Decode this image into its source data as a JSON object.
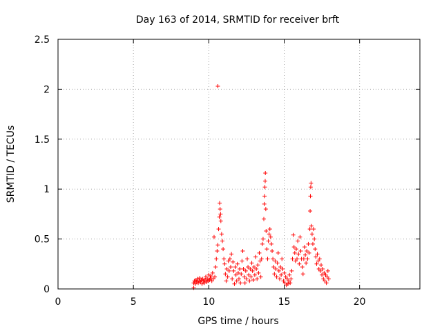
{
  "chart_data": {
    "type": "scatter",
    "title": "Day 163 of 2014, SRMTID for receiver brft",
    "xlabel": "GPS time / hours",
    "ylabel": "SRMTID / TECUs",
    "xlim": [
      0,
      24
    ],
    "ylim": [
      0,
      2.5
    ],
    "xticks": [
      0,
      5,
      10,
      15,
      20
    ],
    "yticks": [
      0,
      0.5,
      1,
      1.5,
      2,
      2.5
    ],
    "grid": true,
    "marker": "+",
    "color": "#ff0000",
    "series": [
      {
        "points": [
          [
            9.0,
            0.01
          ],
          [
            9.0,
            0.06
          ],
          [
            9.05,
            0.08
          ],
          [
            9.1,
            0.05
          ],
          [
            9.15,
            0.09
          ],
          [
            9.2,
            0.07
          ],
          [
            9.25,
            0.1
          ],
          [
            9.3,
            0.06
          ],
          [
            9.35,
            0.08
          ],
          [
            9.4,
            0.11
          ],
          [
            9.45,
            0.07
          ],
          [
            9.5,
            0.09
          ],
          [
            9.55,
            0.05
          ],
          [
            9.6,
            0.1
          ],
          [
            9.65,
            0.08
          ],
          [
            9.7,
            0.06
          ],
          [
            9.75,
            0.09
          ],
          [
            9.8,
            0.12
          ],
          [
            9.85,
            0.07
          ],
          [
            9.9,
            0.1
          ],
          [
            9.95,
            0.08
          ],
          [
            10.0,
            0.14
          ],
          [
            10.05,
            0.09
          ],
          [
            10.1,
            0.11
          ],
          [
            10.15,
            0.13
          ],
          [
            10.2,
            0.08
          ],
          [
            10.25,
            0.16
          ],
          [
            10.3,
            0.1
          ],
          [
            10.35,
            0.52
          ],
          [
            10.4,
            0.12
          ],
          [
            10.45,
            0.22
          ],
          [
            10.5,
            0.3
          ],
          [
            10.55,
            0.38
          ],
          [
            10.6,
            2.03
          ],
          [
            10.6,
            0.44
          ],
          [
            10.65,
            0.6
          ],
          [
            10.7,
            0.72
          ],
          [
            10.72,
            0.86
          ],
          [
            10.75,
            0.8
          ],
          [
            10.78,
            0.75
          ],
          [
            10.8,
            0.68
          ],
          [
            10.85,
            0.55
          ],
          [
            10.9,
            0.48
          ],
          [
            10.95,
            0.4
          ],
          [
            11.0,
            0.3
          ],
          [
            11.05,
            0.25
          ],
          [
            11.1,
            0.15
          ],
          [
            11.15,
            0.08
          ],
          [
            11.2,
            0.2
          ],
          [
            11.25,
            0.12
          ],
          [
            11.3,
            0.28
          ],
          [
            11.35,
            0.18
          ],
          [
            11.4,
            0.3
          ],
          [
            11.45,
            0.22
          ],
          [
            11.5,
            0.35
          ],
          [
            11.55,
            0.1
          ],
          [
            11.6,
            0.27
          ],
          [
            11.65,
            0.18
          ],
          [
            11.7,
            0.05
          ],
          [
            11.75,
            0.22
          ],
          [
            11.8,
            0.14
          ],
          [
            11.85,
            0.08
          ],
          [
            11.9,
            0.25
          ],
          [
            11.95,
            0.16
          ],
          [
            12.0,
            0.1
          ],
          [
            12.05,
            0.2
          ],
          [
            12.1,
            0.06
          ],
          [
            12.15,
            0.15
          ],
          [
            12.2,
            0.28
          ],
          [
            12.25,
            0.38
          ],
          [
            12.3,
            0.2
          ],
          [
            12.35,
            0.12
          ],
          [
            12.4,
            0.06
          ],
          [
            12.45,
            0.18
          ],
          [
            12.5,
            0.1
          ],
          [
            12.55,
            0.3
          ],
          [
            12.6,
            0.22
          ],
          [
            12.65,
            0.14
          ],
          [
            12.7,
            0.08
          ],
          [
            12.75,
            0.2
          ],
          [
            12.8,
            0.12
          ],
          [
            12.85,
            0.26
          ],
          [
            12.9,
            0.18
          ],
          [
            12.95,
            0.09
          ],
          [
            13.0,
            0.22
          ],
          [
            13.05,
            0.14
          ],
          [
            13.1,
            0.32
          ],
          [
            13.15,
            0.2
          ],
          [
            13.2,
            0.1
          ],
          [
            13.25,
            0.24
          ],
          [
            13.3,
            0.16
          ],
          [
            13.35,
            0.36
          ],
          [
            13.4,
            0.28
          ],
          [
            13.45,
            0.12
          ],
          [
            13.5,
            0.3
          ],
          [
            13.55,
            0.45
          ],
          [
            13.6,
            0.5
          ],
          [
            13.65,
            0.7
          ],
          [
            13.68,
            0.85
          ],
          [
            13.7,
            0.93
          ],
          [
            13.72,
            1.02
          ],
          [
            13.74,
            1.08
          ],
          [
            13.75,
            1.16
          ],
          [
            13.78,
            0.8
          ],
          [
            13.8,
            0.58
          ],
          [
            13.85,
            0.4
          ],
          [
            13.9,
            0.3
          ],
          [
            13.95,
            0.48
          ],
          [
            14.0,
            0.55
          ],
          [
            14.05,
            0.6
          ],
          [
            14.1,
            0.52
          ],
          [
            14.15,
            0.45
          ],
          [
            14.2,
            0.38
          ],
          [
            14.25,
            0.3
          ],
          [
            14.3,
            0.22
          ],
          [
            14.35,
            0.15
          ],
          [
            14.4,
            0.28
          ],
          [
            14.45,
            0.2
          ],
          [
            14.5,
            0.12
          ],
          [
            14.55,
            0.26
          ],
          [
            14.6,
            0.36
          ],
          [
            14.65,
            0.18
          ],
          [
            14.7,
            0.1
          ],
          [
            14.75,
            0.22
          ],
          [
            14.8,
            0.14
          ],
          [
            14.85,
            0.3
          ],
          [
            14.9,
            0.2
          ],
          [
            14.95,
            0.08
          ],
          [
            15.0,
            0.16
          ],
          [
            15.05,
            0.06
          ],
          [
            15.1,
            0.12
          ],
          [
            15.15,
            0.04
          ],
          [
            15.2,
            0.1
          ],
          [
            15.25,
            0.05
          ],
          [
            15.3,
            0.08
          ],
          [
            15.35,
            0.14
          ],
          [
            15.4,
            0.06
          ],
          [
            15.45,
            0.1
          ],
          [
            15.5,
            0.18
          ],
          [
            15.55,
            0.3
          ],
          [
            15.6,
            0.54
          ],
          [
            15.65,
            0.42
          ],
          [
            15.7,
            0.36
          ],
          [
            15.75,
            0.28
          ],
          [
            15.8,
            0.4
          ],
          [
            15.85,
            0.3
          ],
          [
            15.9,
            0.48
          ],
          [
            15.95,
            0.35
          ],
          [
            16.0,
            0.25
          ],
          [
            16.05,
            0.52
          ],
          [
            16.1,
            0.38
          ],
          [
            16.15,
            0.3
          ],
          [
            16.2,
            0.22
          ],
          [
            16.25,
            0.15
          ],
          [
            16.3,
            0.3
          ],
          [
            16.35,
            0.42
          ],
          [
            16.4,
            0.34
          ],
          [
            16.45,
            0.26
          ],
          [
            16.5,
            0.38
          ],
          [
            16.55,
            0.3
          ],
          [
            16.6,
            0.45
          ],
          [
            16.65,
            0.36
          ],
          [
            16.7,
            0.6
          ],
          [
            16.72,
            0.78
          ],
          [
            16.74,
            0.93
          ],
          [
            16.76,
            1.02
          ],
          [
            16.78,
            1.06
          ],
          [
            16.8,
            0.63
          ],
          [
            16.85,
            0.55
          ],
          [
            16.9,
            0.45
          ],
          [
            16.95,
            0.6
          ],
          [
            17.0,
            0.5
          ],
          [
            17.05,
            0.4
          ],
          [
            17.1,
            0.32
          ],
          [
            17.15,
            0.25
          ],
          [
            17.2,
            0.35
          ],
          [
            17.25,
            0.28
          ],
          [
            17.3,
            0.2
          ],
          [
            17.35,
            0.3
          ],
          [
            17.4,
            0.18
          ],
          [
            17.45,
            0.24
          ],
          [
            17.5,
            0.14
          ],
          [
            17.55,
            0.2
          ],
          [
            17.6,
            0.1
          ],
          [
            17.65,
            0.16
          ],
          [
            17.7,
            0.08
          ],
          [
            17.75,
            0.14
          ],
          [
            17.8,
            0.06
          ],
          [
            17.85,
            0.12
          ],
          [
            17.9,
            0.18
          ],
          [
            17.95,
            0.1
          ]
        ]
      }
    ]
  }
}
